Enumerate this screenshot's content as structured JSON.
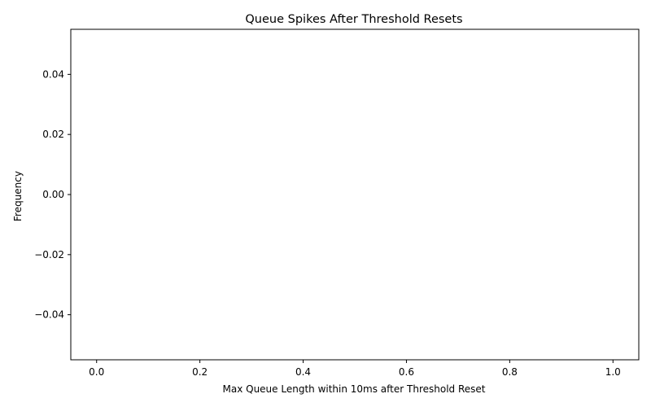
{
  "chart_data": {
    "type": "bar",
    "title": "Queue Spikes After Threshold Resets",
    "xlabel": "Max Queue Length within 10ms after Threshold Reset",
    "ylabel": "Frequency",
    "xlim": [
      -0.05,
      1.05
    ],
    "ylim": [
      -0.055,
      0.055
    ],
    "xticks": [
      0.0,
      0.2,
      0.4,
      0.6,
      0.8,
      1.0
    ],
    "xtick_labels": [
      "0.0",
      "0.2",
      "0.4",
      "0.6",
      "0.8",
      "1.0"
    ],
    "yticks": [
      0.04,
      0.02,
      0.0,
      -0.02,
      -0.04
    ],
    "ytick_labels": [
      "0.04",
      "0.02",
      "0.00",
      "−0.02",
      "−0.04"
    ],
    "bins": [
      {
        "x0": 0.0,
        "x1": 0.1,
        "value": 0
      },
      {
        "x0": 0.1,
        "x1": 0.2,
        "value": 0
      },
      {
        "x0": 0.2,
        "x1": 0.3,
        "value": 0
      },
      {
        "x0": 0.3,
        "x1": 0.4,
        "value": 0
      },
      {
        "x0": 0.4,
        "x1": 0.5,
        "value": 0
      },
      {
        "x0": 0.5,
        "x1": 0.6,
        "value": 0
      },
      {
        "x0": 0.6,
        "x1": 0.7,
        "value": 0
      },
      {
        "x0": 0.7,
        "x1": 0.8,
        "value": 0
      },
      {
        "x0": 0.8,
        "x1": 0.9,
        "value": 0
      },
      {
        "x0": 0.9,
        "x1": 1.0,
        "value": 0
      }
    ],
    "bar_edge_color": "#000000",
    "grid": false,
    "legend": "none"
  }
}
